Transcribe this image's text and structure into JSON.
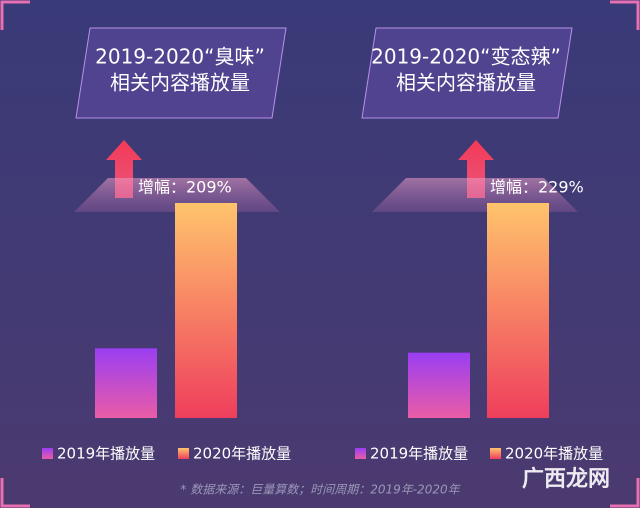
{
  "chart_data": [
    {
      "type": "bar",
      "title": "2019-2020“臭味”",
      "subtitle": "相关内容播放量",
      "annotation": "增幅：209%",
      "ylim": [
        0,
        100
      ],
      "series": [
        {
          "name": "2019年播放量",
          "color": [
            "#9a3ef2",
            "#ea5ca6"
          ],
          "values": [
            32.4
          ]
        },
        {
          "name": "2020年播放量",
          "color": [
            "#ffc46c",
            "#ef3e5c"
          ],
          "values": [
            100
          ]
        }
      ]
    },
    {
      "type": "bar",
      "title": "2019-2020“变态辣”",
      "subtitle": "相关内容播放量",
      "annotation": "增幅：229%",
      "ylim": [
        0,
        100
      ],
      "series": [
        {
          "name": "2019年播放量",
          "color": [
            "#9a3ef2",
            "#ea5ca6"
          ],
          "values": [
            30.4
          ]
        },
        {
          "name": "2020年播放量",
          "color": [
            "#ffc46c",
            "#ef3e5c"
          ],
          "values": [
            100
          ]
        }
      ]
    }
  ],
  "footnote": "* 数据来源：巨量算数；时间周期：2019年-2020年",
  "watermark": "广西龙网"
}
